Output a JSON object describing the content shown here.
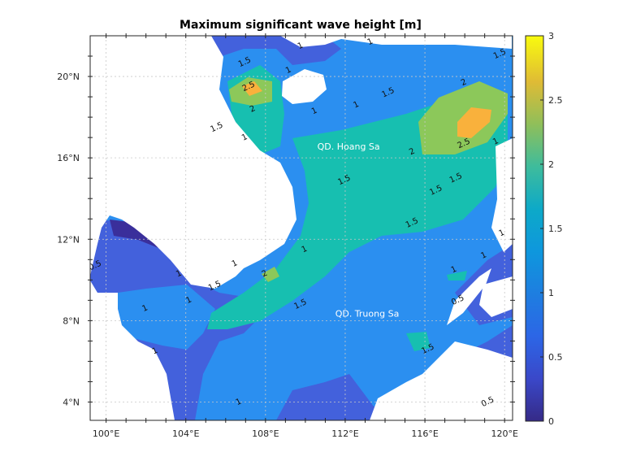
{
  "chart_data": {
    "type": "heatmap",
    "title": "Maximum significant wave height [m]",
    "xlabel": "",
    "ylabel": "",
    "xlim": [
      99.2,
      120.4
    ],
    "ylim": [
      3.1,
      22.0
    ],
    "grid": true,
    "x_ticks": [
      {
        "value": 100,
        "label": "100°E"
      },
      {
        "value": 104,
        "label": "104°E"
      },
      {
        "value": 108,
        "label": "108°E"
      },
      {
        "value": 112,
        "label": "112°E"
      },
      {
        "value": 116,
        "label": "116°E"
      },
      {
        "value": 120,
        "label": "120°E"
      }
    ],
    "y_ticks": [
      {
        "value": 4,
        "label": "4°N"
      },
      {
        "value": 8,
        "label": "8°N"
      },
      {
        "value": 12,
        "label": "12°N"
      },
      {
        "value": 16,
        "label": "16°N"
      },
      {
        "value": 20,
        "label": "20°N"
      }
    ],
    "colorbar": {
      "range": [
        0,
        3
      ],
      "ticks": [
        {
          "value": 0,
          "label": "0"
        },
        {
          "value": 0.5,
          "label": "0.5"
        },
        {
          "value": 1,
          "label": "1"
        },
        {
          "value": 1.5,
          "label": "1.5"
        },
        {
          "value": 2,
          "label": "2"
        },
        {
          "value": 2.5,
          "label": "2.5"
        },
        {
          "value": 3,
          "label": "3"
        }
      ],
      "colors": [
        "#352a87",
        "#3a48c9",
        "#1e7ee0",
        "#0da3d8",
        "#1dbac1",
        "#49c08f",
        "#9fbf56",
        "#dfbb35",
        "#fcc530",
        "#f9fb0e"
      ]
    },
    "level_colors": {
      "land": "#ffffff",
      "h_0_5_1": "#4361dc",
      "h_1_1_5": "#2b8ff0",
      "h_1_5_2": "#17bfb0",
      "h_2_2_5": "#8cc85a",
      "h_2_5_3": "#f9b13c",
      "h_below_0_5": "#3a2f9b"
    },
    "contour_labels": [
      {
        "lon": 107.0,
        "lat": 20.6,
        "text": "1.5"
      },
      {
        "lon": 107.2,
        "lat": 19.4,
        "text": "2.5"
      },
      {
        "lon": 107.4,
        "lat": 18.3,
        "text": "2"
      },
      {
        "lon": 105.6,
        "lat": 17.4,
        "text": "1.5"
      },
      {
        "lon": 107.0,
        "lat": 16.9,
        "text": "1"
      },
      {
        "lon": 109.2,
        "lat": 20.2,
        "text": "1"
      },
      {
        "lon": 109.8,
        "lat": 21.4,
        "text": "1"
      },
      {
        "lon": 110.5,
        "lat": 18.2,
        "text": "1"
      },
      {
        "lon": 112.6,
        "lat": 18.5,
        "text": "1"
      },
      {
        "lon": 113.3,
        "lat": 21.6,
        "text": "1"
      },
      {
        "lon": 114.2,
        "lat": 19.1,
        "text": "1.5"
      },
      {
        "lon": 118.0,
        "lat": 19.6,
        "text": "2"
      },
      {
        "lon": 115.4,
        "lat": 16.2,
        "text": "2"
      },
      {
        "lon": 118.0,
        "lat": 16.6,
        "text": "2.5"
      },
      {
        "lon": 119.8,
        "lat": 21.0,
        "text": "1.5"
      },
      {
        "lon": 119.6,
        "lat": 16.7,
        "text": "1"
      },
      {
        "lon": 117.6,
        "lat": 14.9,
        "text": "1.5"
      },
      {
        "lon": 116.6,
        "lat": 14.3,
        "text": "1.5"
      },
      {
        "lon": 112.0,
        "lat": 14.8,
        "text": "1.5"
      },
      {
        "lon": 115.4,
        "lat": 12.7,
        "text": "1.5"
      },
      {
        "lon": 119.0,
        "lat": 11.1,
        "text": "1"
      },
      {
        "lon": 110.0,
        "lat": 11.4,
        "text": "1"
      },
      {
        "lon": 108.0,
        "lat": 10.2,
        "text": "2"
      },
      {
        "lon": 106.5,
        "lat": 10.7,
        "text": "1"
      },
      {
        "lon": 105.5,
        "lat": 9.6,
        "text": "1.5"
      },
      {
        "lon": 104.2,
        "lat": 8.9,
        "text": "1"
      },
      {
        "lon": 102.0,
        "lat": 8.5,
        "text": "1"
      },
      {
        "lon": 109.8,
        "lat": 8.7,
        "text": "1.5"
      },
      {
        "lon": 117.5,
        "lat": 10.4,
        "text": "1"
      },
      {
        "lon": 117.7,
        "lat": 8.9,
        "text": "0.5"
      },
      {
        "lon": 116.2,
        "lat": 6.5,
        "text": "1.5"
      },
      {
        "lon": 102.5,
        "lat": 6.4,
        "text": "1"
      },
      {
        "lon": 106.7,
        "lat": 3.9,
        "text": "1"
      },
      {
        "lon": 119.2,
        "lat": 3.9,
        "text": "0.5"
      },
      {
        "lon": 99.5,
        "lat": 10.6,
        "text": "0.5"
      },
      {
        "lon": 103.7,
        "lat": 10.2,
        "text": "1"
      },
      {
        "lon": 119.9,
        "lat": 12.2,
        "text": "1"
      }
    ],
    "annotations": [
      {
        "lon": 110.6,
        "lat": 16.4,
        "text": "QD. Hoang Sa"
      },
      {
        "lon": 111.5,
        "lat": 8.2,
        "text": "QD. Truong Sa"
      }
    ]
  }
}
